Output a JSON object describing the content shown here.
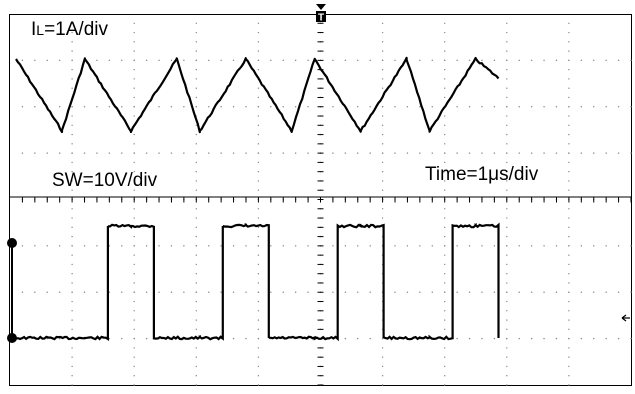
{
  "chart_data": [
    {
      "type": "line",
      "title": "IL=1A/div",
      "label_parts": {
        "main": "I",
        "sub": "L",
        "rest": "=1A/div"
      },
      "series": [
        {
          "x": [
            0.0,
            1.0,
            1.5,
            2.5,
            3.5,
            4.0,
            5.0,
            6.0,
            6.5,
            7.5,
            8.5,
            9.0,
            10.0,
            10.5
          ],
          "values": [
            1.5,
            0.0,
            1.5,
            0.0,
            1.5,
            0.0,
            1.5,
            0.0,
            1.5,
            0.0,
            1.5,
            0.0,
            1.5,
            1.1
          ]
        }
      ],
      "xlim": [
        -1.6,
        10.6
      ],
      "ylim": [
        -1.5,
        2.5
      ],
      "line_color": "#000000"
    },
    {
      "type": "line",
      "title": "SW=10V/div",
      "series": [
        {
          "x": [
            0.0,
            1.5,
            2.0,
            2.5,
            3.0,
            4.0,
            4.5,
            5.0,
            5.5,
            6.5,
            7.0,
            7.5,
            8.0,
            9.0,
            9.5,
            10.0,
            10.5
          ],
          "values": [
            0,
            0,
            1,
            1,
            0,
            0,
            1,
            1,
            0,
            0,
            1,
            1,
            0,
            0,
            1,
            1,
            0
          ]
        }
      ],
      "line_color": "#000000"
    }
  ],
  "annotations": {
    "time_scale": "Time=1μs/div",
    "trigger_marker": "T"
  },
  "colors": {
    "background": "#ffffff",
    "trace": "#000000",
    "grid": "#888888"
  }
}
